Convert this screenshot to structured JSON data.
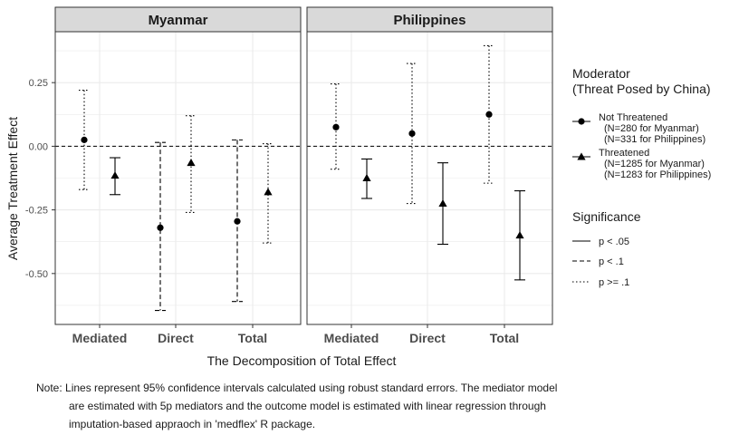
{
  "chart_data": {
    "type": "scatter",
    "subtype": "point-range (coefficient plot) faceted by country",
    "facets": [
      "Myanmar",
      "Philippines"
    ],
    "categories": [
      "Mediated",
      "Direct",
      "Total"
    ],
    "xlabel": "The Decomposition of Total Effect",
    "ylabel": "Average Treatment Effect",
    "ylim": [
      -0.7,
      0.45
    ],
    "yticks": [
      0.25,
      0.0,
      -0.25,
      -0.5
    ],
    "ytick_labels": [
      "0.25",
      "0.00",
      "-0.25",
      "-0.50"
    ],
    "reference_line": {
      "y": 0.0,
      "style": "dashed"
    },
    "grid": true,
    "series": [
      {
        "name": "Not Threatened",
        "shape": "circle",
        "points": [
          {
            "facet": "Myanmar",
            "category": "Mediated",
            "estimate": 0.025,
            "ci_low": -0.17,
            "ci_high": 0.22,
            "significance": "p >= .1"
          },
          {
            "facet": "Myanmar",
            "category": "Direct",
            "estimate": -0.32,
            "ci_low": -0.645,
            "ci_high": 0.015,
            "significance": "p < .1"
          },
          {
            "facet": "Myanmar",
            "category": "Total",
            "estimate": -0.295,
            "ci_low": -0.61,
            "ci_high": 0.025,
            "significance": "p < .1"
          },
          {
            "facet": "Philippines",
            "category": "Mediated",
            "estimate": 0.075,
            "ci_low": -0.09,
            "ci_high": 0.245,
            "significance": "p >= .1"
          },
          {
            "facet": "Philippines",
            "category": "Direct",
            "estimate": 0.05,
            "ci_low": -0.225,
            "ci_high": 0.325,
            "significance": "p >= .1"
          },
          {
            "facet": "Philippines",
            "category": "Total",
            "estimate": 0.125,
            "ci_low": -0.145,
            "ci_high": 0.395,
            "significance": "p >= .1"
          }
        ]
      },
      {
        "name": "Threatened",
        "shape": "triangle",
        "points": [
          {
            "facet": "Myanmar",
            "category": "Mediated",
            "estimate": -0.115,
            "ci_low": -0.19,
            "ci_high": -0.045,
            "significance": "p < .05"
          },
          {
            "facet": "Myanmar",
            "category": "Direct",
            "estimate": -0.065,
            "ci_low": -0.26,
            "ci_high": 0.12,
            "significance": "p >= .1"
          },
          {
            "facet": "Myanmar",
            "category": "Total",
            "estimate": -0.18,
            "ci_low": -0.38,
            "ci_high": 0.01,
            "significance": "p >= .1"
          },
          {
            "facet": "Philippines",
            "category": "Mediated",
            "estimate": -0.125,
            "ci_low": -0.205,
            "ci_high": -0.05,
            "significance": "p < .05"
          },
          {
            "facet": "Philippines",
            "category": "Direct",
            "estimate": -0.225,
            "ci_low": -0.385,
            "ci_high": -0.065,
            "significance": "p < .05"
          },
          {
            "facet": "Philippines",
            "category": "Total",
            "estimate": -0.35,
            "ci_low": -0.525,
            "ci_high": -0.175,
            "significance": "p < .05"
          }
        ]
      }
    ],
    "legend": {
      "placement": "right",
      "moderator_title_line1": "Moderator",
      "moderator_title_line2": "(Threat Posed by China)",
      "moderator_items": [
        {
          "label": "Not Threatened",
          "sub1": "(N=280 for Myanmar)",
          "sub2": "(N=331 for Philippines)",
          "shape": "circle"
        },
        {
          "label": "Threatened",
          "sub1": "(N=1285 for Myanmar)",
          "sub2": "(N=1283 for Philippines)",
          "shape": "triangle"
        }
      ],
      "significance_title": "Significance",
      "significance_items": [
        {
          "label": "p < .05",
          "linetype": "solid"
        },
        {
          "label": "p < .1",
          "linetype": "dashed"
        },
        {
          "label": "p >= .1",
          "linetype": "dotted"
        }
      ]
    },
    "colors": {
      "panel_border": "#333333",
      "strip_fill": "#d9d9d9",
      "grid": "#ebebeb",
      "ink": "#000000"
    }
  },
  "note": {
    "line1": "Note: Lines represent 95% confidence intervals calculated using robust standard errors. The mediator model",
    "line2": "are estimated with 5p mediators and the outcome model is estimated with linear regression through",
    "line3": "imputation-based appraoch in 'medflex' R package."
  }
}
